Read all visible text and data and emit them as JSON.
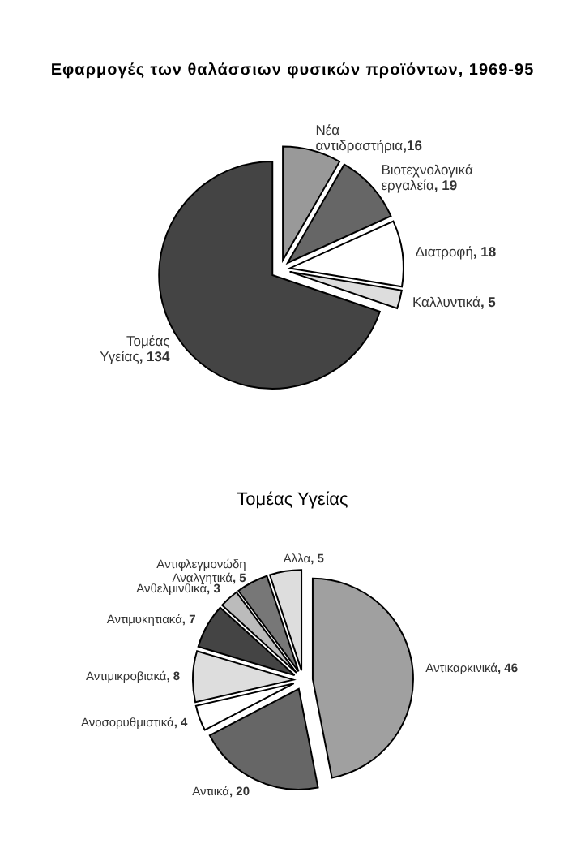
{
  "chart_data": [
    {
      "type": "pie",
      "title": "Εφαρμογές των θαλάσσιων φυσικών προϊόντων, 1969-95",
      "categories": [
        "Νέα αντιδραστήρια",
        "Βιοτεχνολογικά εργαλεία",
        "Διατροφή",
        "Καλλυντικά",
        "Τομέας Υγείας"
      ],
      "values": [
        16,
        19,
        18,
        5,
        134
      ],
      "value_labels": [
        ",16",
        ", 19",
        ", 18",
        ", 5",
        ", 134"
      ],
      "colors": [
        "#999999",
        "#666666",
        "#ffffff",
        "#dddddd",
        "#444444"
      ]
    },
    {
      "type": "pie",
      "title": "Τομέας Υγείας",
      "categories": [
        "Αντικαρκινικά",
        "Αντιικά",
        "Ανοσορυθμιστικά",
        "Αντιμικροβιακά",
        "Αντιμυκητιακά",
        "Ανθελμινθικά",
        "Αντιφλεγμονώδη Αναλγητικά",
        "Αλλα"
      ],
      "values": [
        46,
        20,
        4,
        8,
        7,
        3,
        5,
        5
      ],
      "value_labels": [
        ", 46",
        ", 20",
        ", 4",
        ", 8",
        ", 7",
        ", 3",
        ", 5",
        ", 5"
      ],
      "colors": [
        "#a0a0a0",
        "#666666",
        "#ffffff",
        "#dddddd",
        "#444444",
        "#bbbbbb",
        "#777777",
        "#dddddd"
      ]
    }
  ]
}
